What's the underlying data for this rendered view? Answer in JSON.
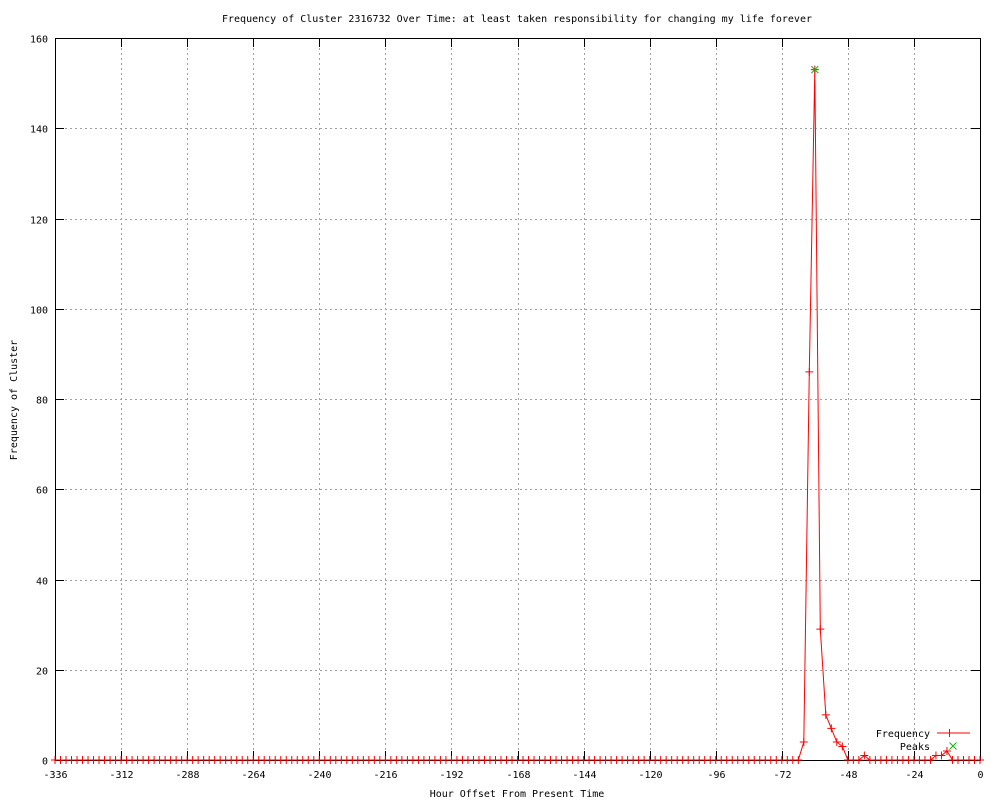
{
  "chart_data": {
    "type": "line",
    "title": "Frequency of Cluster 2316732 Over Time: at least taken responsibility for changing my life forever",
    "xlabel": "Hour Offset From Present Time",
    "ylabel": "Frequency of Cluster",
    "xlim": [
      -336,
      0
    ],
    "ylim": [
      0,
      160
    ],
    "xticks": [
      -336,
      -312,
      -288,
      -264,
      -240,
      -216,
      -192,
      -168,
      -144,
      -120,
      -96,
      -72,
      -48,
      -24,
      0
    ],
    "yticks": [
      0,
      20,
      40,
      60,
      80,
      100,
      120,
      140,
      160
    ],
    "grid": true,
    "legend_position": "bottom-right",
    "series": [
      {
        "name": "Frequency",
        "color": "#ff0000",
        "marker": "plus",
        "x": [
          -336,
          -334,
          -332,
          -330,
          -328,
          -326,
          -324,
          -322,
          -320,
          -318,
          -316,
          -314,
          -312,
          -310,
          -308,
          -306,
          -304,
          -302,
          -300,
          -298,
          -296,
          -294,
          -292,
          -290,
          -288,
          -286,
          -284,
          -282,
          -280,
          -278,
          -276,
          -274,
          -272,
          -270,
          -268,
          -266,
          -264,
          -262,
          -260,
          -258,
          -256,
          -254,
          -252,
          -250,
          -248,
          -246,
          -244,
          -242,
          -240,
          -238,
          -236,
          -234,
          -232,
          -230,
          -228,
          -226,
          -224,
          -222,
          -220,
          -218,
          -216,
          -214,
          -212,
          -210,
          -208,
          -206,
          -204,
          -202,
          -200,
          -198,
          -196,
          -194,
          -192,
          -190,
          -188,
          -186,
          -184,
          -182,
          -180,
          -178,
          -176,
          -174,
          -172,
          -170,
          -168,
          -166,
          -164,
          -162,
          -160,
          -158,
          -156,
          -154,
          -152,
          -150,
          -148,
          -146,
          -144,
          -142,
          -140,
          -138,
          -136,
          -134,
          -132,
          -130,
          -128,
          -126,
          -124,
          -122,
          -120,
          -118,
          -116,
          -114,
          -112,
          -110,
          -108,
          -106,
          -104,
          -102,
          -100,
          -98,
          -96,
          -94,
          -92,
          -90,
          -88,
          -86,
          -84,
          -82,
          -80,
          -78,
          -76,
          -74,
          -72,
          -70,
          -68,
          -66,
          -64,
          -62,
          -60,
          -58,
          -56,
          -54,
          -52,
          -50,
          -48,
          -46,
          -44,
          -42,
          -40,
          -38,
          -36,
          -34,
          -32,
          -30,
          -28,
          -26,
          -24,
          -22,
          -20,
          -18,
          -16,
          -14,
          -12,
          -10,
          -8,
          -6,
          -4,
          -2,
          0
        ],
        "y": [
          0,
          0,
          0,
          0,
          0,
          0,
          0,
          0,
          0,
          0,
          0,
          0,
          0,
          0,
          0,
          0,
          0,
          0,
          0,
          0,
          0,
          0,
          0,
          0,
          0,
          0,
          0,
          0,
          0,
          0,
          0,
          0,
          0,
          0,
          0,
          0,
          0,
          0,
          0,
          0,
          0,
          0,
          0,
          0,
          0,
          0,
          0,
          0,
          0,
          0,
          0,
          0,
          0,
          0,
          0,
          0,
          0,
          0,
          0,
          0,
          0,
          0,
          0,
          0,
          0,
          0,
          0,
          0,
          0,
          0,
          0,
          0,
          0,
          0,
          0,
          0,
          0,
          0,
          0,
          0,
          0,
          0,
          0,
          0,
          0,
          0,
          0,
          0,
          0,
          0,
          0,
          0,
          0,
          0,
          0,
          0,
          0,
          0,
          0,
          0,
          0,
          0,
          0,
          0,
          0,
          0,
          0,
          0,
          0,
          0,
          0,
          0,
          0,
          0,
          0,
          0,
          0,
          0,
          0,
          0,
          0,
          0,
          0,
          0,
          0,
          0,
          0,
          0,
          0,
          0,
          0,
          0,
          0,
          0,
          0,
          0,
          4,
          86,
          153,
          29,
          10,
          7,
          4,
          3,
          0,
          0,
          0,
          1,
          0,
          0,
          0,
          0,
          0,
          0,
          0,
          0,
          0,
          0,
          0,
          0,
          1,
          1,
          2,
          0,
          0,
          0,
          0,
          0,
          0
        ]
      },
      {
        "name": "Peaks",
        "color": "#00c000",
        "marker": "x",
        "x": [
          -60
        ],
        "y": [
          153
        ]
      }
    ]
  }
}
